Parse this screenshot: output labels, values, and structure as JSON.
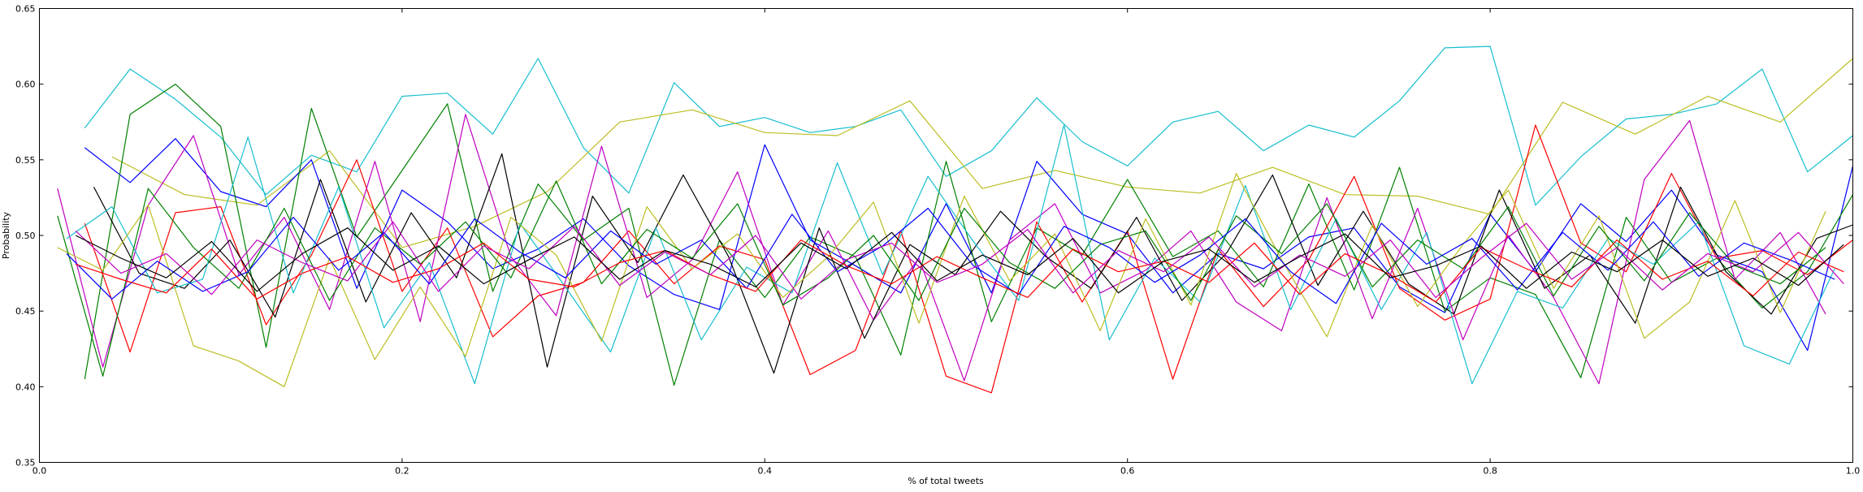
{
  "chart_data": {
    "type": "line",
    "title": "",
    "xlabel": "% of total tweets",
    "ylabel": "Probability",
    "xlim": [
      0.0,
      1.0
    ],
    "ylim": [
      0.35,
      0.65
    ],
    "x_ticks": [
      "0.0",
      "0.2",
      "0.4",
      "0.6",
      "0.8",
      "1.0"
    ],
    "y_ticks": [
      "0.35",
      "0.40",
      "0.45",
      "0.50",
      "0.55",
      "0.60",
      "0.65"
    ],
    "grid": false,
    "series": [
      {
        "color": "#17becf",
        "x": [
          0.025,
          0.05,
          0.075,
          0.1,
          0.125,
          0.15,
          0.175,
          0.2,
          0.225,
          0.25,
          0.275,
          0.3,
          0.325,
          0.35,
          0.375,
          0.4,
          0.425,
          0.45,
          0.475,
          0.5,
          0.525,
          0.55,
          0.575,
          0.6,
          0.625,
          0.65,
          0.675,
          0.7,
          0.725,
          0.75,
          0.775,
          0.8,
          0.825,
          0.85,
          0.875,
          0.9,
          0.925,
          0.95,
          0.975,
          1.0
        ],
        "y": [
          0.571,
          0.61,
          0.59,
          0.565,
          0.527,
          0.553,
          0.542,
          0.592,
          0.594,
          0.567,
          0.617,
          0.558,
          0.528,
          0.601,
          0.572,
          0.578,
          0.568,
          0.572,
          0.583,
          0.539,
          0.556,
          0.591,
          0.562,
          0.546,
          0.575,
          0.582,
          0.556,
          0.573,
          0.565,
          0.589,
          0.624,
          0.625,
          0.52,
          0.552,
          0.577,
          0.58,
          0.587,
          0.61,
          0.542,
          0.566
        ]
      },
      {
        "color": "#bcbd22",
        "x": [
          0.04,
          0.08,
          0.12,
          0.16,
          0.2,
          0.24,
          0.28,
          0.32,
          0.36,
          0.4,
          0.44,
          0.48,
          0.52,
          0.56,
          0.6,
          0.64,
          0.68,
          0.72,
          0.76,
          0.8,
          0.84,
          0.88,
          0.92,
          0.96,
          1.0
        ],
        "y": [
          0.552,
          0.527,
          0.52,
          0.556,
          0.492,
          0.506,
          0.529,
          0.575,
          0.583,
          0.568,
          0.566,
          0.589,
          0.531,
          0.543,
          0.532,
          0.528,
          0.545,
          0.527,
          0.526,
          0.514,
          0.588,
          0.567,
          0.592,
          0.575,
          0.617
        ]
      },
      {
        "color": "#0000ff",
        "x": [
          0.025,
          0.05,
          0.075,
          0.1,
          0.125,
          0.15,
          0.175,
          0.2,
          0.225,
          0.25,
          0.275,
          0.3,
          0.325,
          0.35,
          0.375,
          0.4,
          0.425,
          0.45,
          0.475,
          0.5,
          0.525,
          0.55,
          0.575,
          0.6,
          0.625,
          0.65,
          0.675,
          0.7,
          0.725,
          0.75,
          0.775,
          0.8,
          0.825,
          0.85,
          0.875,
          0.9,
          0.925,
          0.95,
          0.975,
          1.0
        ],
        "y": [
          0.558,
          0.535,
          0.564,
          0.529,
          0.519,
          0.55,
          0.465,
          0.53,
          0.509,
          0.478,
          0.491,
          0.511,
          0.48,
          0.461,
          0.451,
          0.56,
          0.497,
          0.48,
          0.462,
          0.521,
          0.462,
          0.549,
          0.514,
          0.501,
          0.462,
          0.488,
          0.478,
          0.499,
          0.505,
          0.466,
          0.449,
          0.514,
          0.476,
          0.521,
          0.496,
          0.53,
          0.487,
          0.476,
          0.424,
          0.546
        ]
      },
      {
        "color": "#008000",
        "x": [
          0.025,
          0.05,
          0.075,
          0.1,
          0.125,
          0.15,
          0.175,
          0.2,
          0.225,
          0.25,
          0.275,
          0.3,
          0.325,
          0.35,
          0.375,
          0.4,
          0.425,
          0.45,
          0.475,
          0.5,
          0.525,
          0.55,
          0.575,
          0.6,
          0.625,
          0.65,
          0.675,
          0.7,
          0.725,
          0.75,
          0.775,
          0.8,
          0.825,
          0.85,
          0.875,
          0.9,
          0.925,
          0.95,
          0.975,
          1.0
        ],
        "y": [
          0.405,
          0.58,
          0.6,
          0.572,
          0.426,
          0.584,
          0.499,
          0.543,
          0.587,
          0.463,
          0.534,
          0.497,
          0.518,
          0.401,
          0.497,
          0.459,
          0.499,
          0.486,
          0.421,
          0.549,
          0.443,
          0.505,
          0.487,
          0.537,
          0.486,
          0.503,
          0.466,
          0.534,
          0.464,
          0.545,
          0.45,
          0.472,
          0.461,
          0.406,
          0.512,
          0.469,
          0.485,
          0.452,
          0.476,
          0.527
        ]
      },
      {
        "color": "#ff0000",
        "x": [
          0.025,
          0.05,
          0.075,
          0.1,
          0.125,
          0.15,
          0.175,
          0.2,
          0.225,
          0.25,
          0.275,
          0.3,
          0.325,
          0.35,
          0.375,
          0.4,
          0.425,
          0.45,
          0.475,
          0.5,
          0.525,
          0.55,
          0.575,
          0.6,
          0.625,
          0.65,
          0.675,
          0.7,
          0.725,
          0.75,
          0.775,
          0.8,
          0.825,
          0.85,
          0.875,
          0.9,
          0.925,
          0.95,
          0.975,
          1.0
        ],
        "y": [
          0.508,
          0.423,
          0.515,
          0.519,
          0.441,
          0.487,
          0.55,
          0.463,
          0.505,
          0.433,
          0.46,
          0.469,
          0.503,
          0.468,
          0.493,
          0.484,
          0.408,
          0.424,
          0.503,
          0.407,
          0.396,
          0.509,
          0.456,
          0.503,
          0.405,
          0.491,
          0.453,
          0.484,
          0.539,
          0.465,
          0.444,
          0.458,
          0.573,
          0.495,
          0.476,
          0.541,
          0.485,
          0.49,
          0.474,
          0.497
        ]
      },
      {
        "color": "#bf00bf",
        "x": [
          0.01,
          0.035,
          0.06,
          0.085,
          0.11,
          0.135,
          0.16,
          0.185,
          0.21,
          0.235,
          0.26,
          0.285,
          0.31,
          0.335,
          0.36,
          0.385,
          0.41,
          0.435,
          0.46,
          0.485,
          0.51,
          0.535,
          0.56,
          0.585,
          0.61,
          0.635,
          0.66,
          0.685,
          0.71,
          0.735,
          0.76,
          0.785,
          0.81,
          0.835,
          0.86,
          0.885,
          0.91,
          0.935,
          0.96,
          0.985
        ],
        "y": [
          0.531,
          0.413,
          0.52,
          0.566,
          0.474,
          0.512,
          0.451,
          0.549,
          0.443,
          0.58,
          0.486,
          0.447,
          0.559,
          0.459,
          0.484,
          0.542,
          0.454,
          0.503,
          0.444,
          0.485,
          0.404,
          0.497,
          0.521,
          0.462,
          0.477,
          0.503,
          0.456,
          0.437,
          0.525,
          0.445,
          0.518,
          0.431,
          0.5,
          0.459,
          0.402,
          0.537,
          0.576,
          0.471,
          0.502,
          0.448
        ]
      },
      {
        "color": "#000000",
        "x": [
          0.03,
          0.055,
          0.08,
          0.105,
          0.13,
          0.155,
          0.18,
          0.205,
          0.23,
          0.255,
          0.28,
          0.305,
          0.33,
          0.355,
          0.38,
          0.405,
          0.43,
          0.455,
          0.48,
          0.505,
          0.53,
          0.555,
          0.58,
          0.605,
          0.63,
          0.655,
          0.68,
          0.705,
          0.73,
          0.755,
          0.78,
          0.805,
          0.83,
          0.855,
          0.88,
          0.905,
          0.93,
          0.955,
          0.98,
          1.0
        ],
        "y": [
          0.532,
          0.475,
          0.465,
          0.497,
          0.446,
          0.537,
          0.456,
          0.515,
          0.472,
          0.554,
          0.413,
          0.526,
          0.482,
          0.54,
          0.486,
          0.409,
          0.505,
          0.432,
          0.494,
          0.474,
          0.516,
          0.486,
          0.465,
          0.512,
          0.457,
          0.489,
          0.54,
          0.467,
          0.516,
          0.468,
          0.448,
          0.53,
          0.465,
          0.487,
          0.442,
          0.532,
          0.476,
          0.448,
          0.498,
          0.507
        ]
      },
      {
        "color": "#17becf",
        "x": [
          0.015,
          0.04,
          0.065,
          0.09,
          0.115,
          0.14,
          0.165,
          0.19,
          0.215,
          0.24,
          0.265,
          0.29,
          0.315,
          0.34,
          0.365,
          0.39,
          0.415,
          0.44,
          0.465,
          0.49,
          0.515,
          0.54,
          0.565,
          0.59,
          0.615,
          0.64,
          0.665,
          0.69,
          0.715,
          0.74,
          0.765,
          0.79,
          0.815,
          0.84,
          0.865,
          0.89,
          0.915,
          0.94,
          0.965,
          0.99
        ],
        "y": [
          0.498,
          0.519,
          0.462,
          0.471,
          0.565,
          0.462,
          0.532,
          0.439,
          0.482,
          0.402,
          0.508,
          0.466,
          0.423,
          0.505,
          0.431,
          0.479,
          0.462,
          0.548,
          0.474,
          0.539,
          0.496,
          0.457,
          0.573,
          0.431,
          0.485,
          0.456,
          0.533,
          0.451,
          0.511,
          0.451,
          0.502,
          0.402,
          0.463,
          0.452,
          0.498,
          0.481,
          0.509,
          0.427,
          0.415,
          0.478
        ]
      },
      {
        "color": "#bcbd22",
        "x": [
          0.01,
          0.035,
          0.06,
          0.085,
          0.11,
          0.135,
          0.16,
          0.185,
          0.21,
          0.235,
          0.26,
          0.285,
          0.31,
          0.335,
          0.36,
          0.385,
          0.41,
          0.435,
          0.46,
          0.485,
          0.51,
          0.535,
          0.56,
          0.585,
          0.61,
          0.635,
          0.66,
          0.685,
          0.71,
          0.735,
          0.76,
          0.785,
          0.81,
          0.835,
          0.86,
          0.885,
          0.91,
          0.935,
          0.96,
          0.985
        ],
        "y": [
          0.492,
          0.477,
          0.52,
          0.427,
          0.417,
          0.4,
          0.485,
          0.418,
          0.466,
          0.42,
          0.512,
          0.487,
          0.43,
          0.519,
          0.478,
          0.501,
          0.459,
          0.486,
          0.522,
          0.442,
          0.526,
          0.47,
          0.501,
          0.437,
          0.511,
          0.454,
          0.541,
          0.484,
          0.433,
          0.507,
          0.453,
          0.494,
          0.53,
          0.465,
          0.513,
          0.432,
          0.456,
          0.523,
          0.449,
          0.516
        ]
      },
      {
        "color": "#008000",
        "x": [
          0.01,
          0.035,
          0.06,
          0.085,
          0.11,
          0.135,
          0.16,
          0.185,
          0.21,
          0.235,
          0.26,
          0.285,
          0.31,
          0.335,
          0.36,
          0.385,
          0.41,
          0.435,
          0.46,
          0.485,
          0.51,
          0.535,
          0.56,
          0.585,
          0.61,
          0.635,
          0.66,
          0.685,
          0.71,
          0.735,
          0.76,
          0.785,
          0.81,
          0.835,
          0.86,
          0.885,
          0.91,
          0.935,
          0.96,
          0.985
        ],
        "y": [
          0.513,
          0.407,
          0.531,
          0.492,
          0.465,
          0.518,
          0.457,
          0.505,
          0.481,
          0.509,
          0.472,
          0.536,
          0.468,
          0.504,
          0.485,
          0.521,
          0.454,
          0.472,
          0.5,
          0.457,
          0.518,
          0.482,
          0.465,
          0.494,
          0.503,
          0.457,
          0.513,
          0.488,
          0.521,
          0.466,
          0.497,
          0.478,
          0.519,
          0.46,
          0.506,
          0.47,
          0.515,
          0.48,
          0.468,
          0.492
        ]
      },
      {
        "color": "#0000ff",
        "x": [
          0.015,
          0.04,
          0.065,
          0.09,
          0.115,
          0.14,
          0.165,
          0.19,
          0.215,
          0.24,
          0.265,
          0.29,
          0.315,
          0.34,
          0.365,
          0.39,
          0.415,
          0.44,
          0.465,
          0.49,
          0.515,
          0.54,
          0.565,
          0.59,
          0.615,
          0.64,
          0.665,
          0.69,
          0.715,
          0.74,
          0.765,
          0.79,
          0.815,
          0.84,
          0.865,
          0.89,
          0.915,
          0.94,
          0.965,
          0.99
        ],
        "y": [
          0.488,
          0.458,
          0.483,
          0.463,
          0.476,
          0.512,
          0.477,
          0.502,
          0.468,
          0.511,
          0.489,
          0.472,
          0.503,
          0.481,
          0.497,
          0.465,
          0.514,
          0.476,
          0.493,
          0.518,
          0.48,
          0.461,
          0.506,
          0.492,
          0.469,
          0.487,
          0.511,
          0.476,
          0.455,
          0.508,
          0.481,
          0.498,
          0.464,
          0.502,
          0.477,
          0.509,
          0.473,
          0.495,
          0.484,
          0.471
        ]
      },
      {
        "color": "#ff0000",
        "x": [
          0.02,
          0.045,
          0.07,
          0.095,
          0.12,
          0.145,
          0.17,
          0.195,
          0.22,
          0.245,
          0.27,
          0.295,
          0.32,
          0.345,
          0.37,
          0.395,
          0.42,
          0.445,
          0.47,
          0.495,
          0.52,
          0.545,
          0.57,
          0.595,
          0.62,
          0.645,
          0.67,
          0.695,
          0.72,
          0.745,
          0.77,
          0.795,
          0.82,
          0.845,
          0.87,
          0.895,
          0.92,
          0.945,
          0.97,
          0.995
        ],
        "y": [
          0.481,
          0.471,
          0.462,
          0.491,
          0.458,
          0.475,
          0.486,
          0.469,
          0.478,
          0.495,
          0.471,
          0.466,
          0.482,
          0.49,
          0.474,
          0.463,
          0.497,
          0.48,
          0.468,
          0.486,
          0.472,
          0.459,
          0.491,
          0.476,
          0.483,
          0.469,
          0.495,
          0.461,
          0.488,
          0.474,
          0.456,
          0.492,
          0.478,
          0.466,
          0.497,
          0.471,
          0.483,
          0.46,
          0.489,
          0.476
        ]
      },
      {
        "color": "#bf00bf",
        "x": [
          0.02,
          0.045,
          0.07,
          0.095,
          0.12,
          0.145,
          0.17,
          0.195,
          0.22,
          0.245,
          0.27,
          0.295,
          0.32,
          0.345,
          0.37,
          0.395,
          0.42,
          0.445,
          0.47,
          0.495,
          0.52,
          0.545,
          0.57,
          0.595,
          0.62,
          0.645,
          0.67,
          0.695,
          0.72,
          0.745,
          0.77,
          0.795,
          0.82,
          0.845,
          0.87,
          0.895,
          0.92,
          0.945,
          0.97,
          0.995
        ],
        "y": [
          0.503,
          0.475,
          0.488,
          0.461,
          0.497,
          0.482,
          0.47,
          0.509,
          0.463,
          0.493,
          0.478,
          0.506,
          0.467,
          0.489,
          0.474,
          0.5,
          0.458,
          0.484,
          0.495,
          0.469,
          0.481,
          0.504,
          0.462,
          0.49,
          0.476,
          0.499,
          0.466,
          0.487,
          0.473,
          0.497,
          0.459,
          0.485,
          0.508,
          0.471,
          0.492,
          0.464,
          0.488,
          0.476,
          0.502,
          0.468
        ]
      },
      {
        "color": "#000000",
        "x": [
          0.02,
          0.045,
          0.07,
          0.095,
          0.12,
          0.145,
          0.17,
          0.195,
          0.22,
          0.245,
          0.27,
          0.295,
          0.32,
          0.345,
          0.37,
          0.395,
          0.42,
          0.445,
          0.47,
          0.495,
          0.52,
          0.545,
          0.57,
          0.595,
          0.62,
          0.645,
          0.67,
          0.695,
          0.72,
          0.745,
          0.77,
          0.795,
          0.82,
          0.845,
          0.87,
          0.895,
          0.92,
          0.945,
          0.97,
          0.995
        ],
        "y": [
          0.5,
          0.485,
          0.472,
          0.496,
          0.463,
          0.488,
          0.505,
          0.477,
          0.493,
          0.468,
          0.484,
          0.499,
          0.471,
          0.49,
          0.481,
          0.466,
          0.495,
          0.478,
          0.502,
          0.47,
          0.487,
          0.474,
          0.498,
          0.462,
          0.483,
          0.491,
          0.469,
          0.486,
          0.501,
          0.472,
          0.48,
          0.493,
          0.465,
          0.489,
          0.476,
          0.497,
          0.473,
          0.485,
          0.467,
          0.494
        ]
      }
    ]
  }
}
